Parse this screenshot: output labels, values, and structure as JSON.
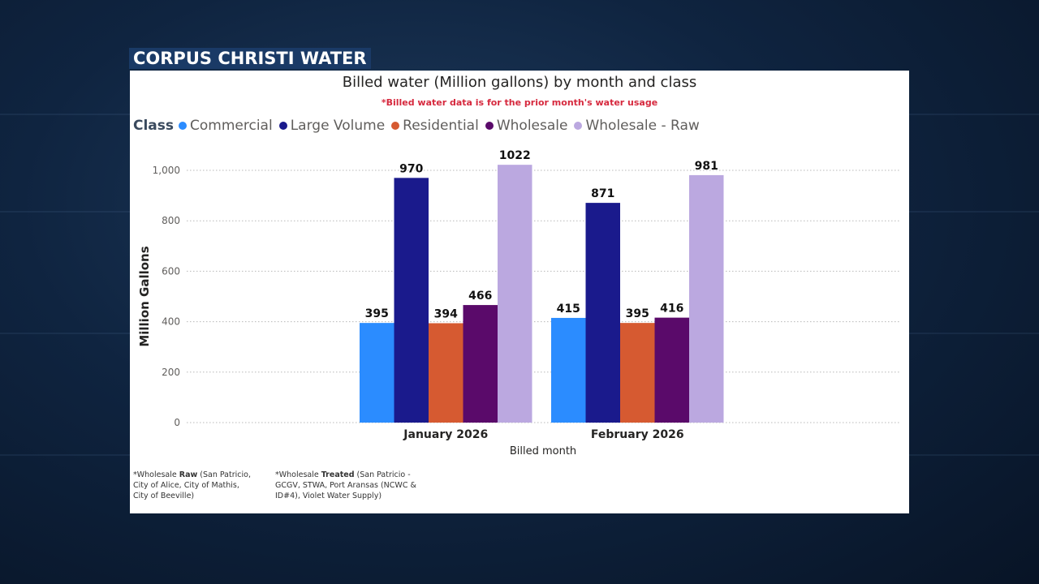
{
  "brand": "CORPUS CHRISTI WATER",
  "footnotes": {
    "raw_prefix": "*Wholesale ",
    "raw_bold": "Raw",
    "raw_rest": " (San Patricio, City of Alice, City of Mathis, City of Beeville)",
    "treated_prefix": "*Wholesale ",
    "treated_bold": "Treated",
    "treated_rest": " (San Patricio - GCGV, STWA, Port Aransas (NCWC & ID#4), Violet Water Supply)"
  },
  "chart_data": {
    "type": "bar",
    "title": "Billed water (Million gallons) by month and class",
    "subtitle": "*Billed water data is for the prior month's water usage",
    "legend_title": "Class",
    "xlabel": "Billed month",
    "ylabel": "Million Gallons",
    "ylim": [
      0,
      1000
    ],
    "yticks": [
      "0",
      "200",
      "400",
      "600",
      "800",
      "1,000"
    ],
    "ytick_values": [
      0,
      200,
      400,
      600,
      800,
      1000
    ],
    "grid": true,
    "legend_position": "top-left",
    "categories": [
      "January 2026",
      "February 2026"
    ],
    "series": [
      {
        "name": "Commercial",
        "color": "#2b8cff",
        "values": [
          395,
          415
        ]
      },
      {
        "name": "Large Volume",
        "color": "#1a1a8c",
        "values": [
          970,
          871
        ]
      },
      {
        "name": "Residential",
        "color": "#d65a31",
        "values": [
          394,
          395
        ]
      },
      {
        "name": "Wholesale",
        "color": "#5a0a6a",
        "values": [
          466,
          416
        ]
      },
      {
        "name": "Wholesale - Raw",
        "color": "#bba8e0",
        "values": [
          1022,
          981
        ]
      }
    ]
  }
}
